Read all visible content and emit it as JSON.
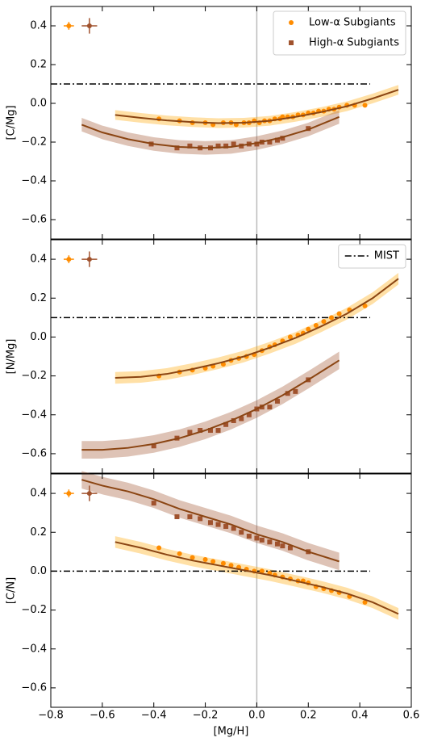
{
  "chart_data": [
    {
      "type": "scatter",
      "ylabel": "[C/Mg]",
      "ylim": [
        -0.7,
        0.5
      ],
      "yticks": [
        {
          "value": -0.6,
          "label": "−0.6"
        },
        {
          "value": -0.4,
          "label": "−0.4"
        },
        {
          "value": -0.2,
          "label": "−0.2"
        },
        {
          "value": 0,
          "label": "0.0"
        },
        0.2,
        0.4
      ],
      "vline": 0,
      "legend": "upper right",
      "series": [
        {
          "name": "Low-α Subgiants",
          "color": "#ff8c00",
          "marker": "circle",
          "x": [
            -0.38,
            -0.3,
            -0.25,
            -0.2,
            -0.17,
            -0.13,
            -0.1,
            -0.08,
            -0.05,
            -0.03,
            -0.01,
            0.01,
            0.03,
            0.05,
            0.07,
            0.09,
            0.1,
            0.12,
            0.14,
            0.16,
            0.18,
            0.2,
            0.22,
            0.24,
            0.26,
            0.28,
            0.3,
            0.32,
            0.35,
            0.38,
            0.42
          ],
          "values": [
            -0.08,
            -0.09,
            -0.1,
            -0.1,
            -0.11,
            -0.1,
            -0.1,
            -0.11,
            -0.1,
            -0.1,
            -0.09,
            -0.1,
            -0.09,
            -0.09,
            -0.08,
            -0.08,
            -0.07,
            -0.07,
            -0.07,
            -0.06,
            -0.06,
            -0.05,
            -0.05,
            -0.04,
            -0.04,
            -0.03,
            -0.03,
            -0.02,
            -0.01,
            -0.01,
            -0.01
          ]
        },
        {
          "name": "High-α Subgiants",
          "color": "#a0522d",
          "marker": "square",
          "x": [
            -0.41,
            -0.31,
            -0.26,
            -0.22,
            -0.18,
            -0.15,
            -0.12,
            -0.09,
            -0.06,
            -0.03,
            0,
            0.02,
            0.05,
            0.08,
            0.1,
            0.2
          ],
          "values": [
            -0.21,
            -0.23,
            -0.22,
            -0.23,
            -0.23,
            -0.22,
            -0.22,
            -0.21,
            -0.22,
            -0.21,
            -0.21,
            -0.2,
            -0.2,
            -0.19,
            -0.18,
            -0.13
          ]
        }
      ],
      "fits": [
        {
          "color": "#8b4513",
          "band_color": "#ffa500",
          "x": [
            -0.55,
            -0.45,
            -0.35,
            -0.25,
            -0.15,
            -0.05,
            0.05,
            0.15,
            0.25,
            0.35,
            0.45,
            0.55
          ],
          "values": [
            -0.06,
            -0.075,
            -0.088,
            -0.097,
            -0.102,
            -0.1,
            -0.09,
            -0.07,
            -0.045,
            -0.015,
            0.025,
            0.07
          ],
          "lower": [
            -0.085,
            -0.1,
            -0.113,
            -0.122,
            -0.127,
            -0.125,
            -0.115,
            -0.095,
            -0.07,
            -0.04,
            0,
            0.045
          ],
          "upper": [
            -0.035,
            -0.05,
            -0.063,
            -0.072,
            -0.077,
            -0.075,
            -0.065,
            -0.045,
            -0.02,
            0.01,
            0.05,
            0.095
          ]
        },
        {
          "color": "#8b4513",
          "band_color": "#a0522d",
          "x": [
            -0.68,
            -0.6,
            -0.5,
            -0.4,
            -0.3,
            -0.2,
            -0.1,
            0,
            0.1,
            0.2,
            0.32
          ],
          "values": [
            -0.11,
            -0.15,
            -0.185,
            -0.21,
            -0.225,
            -0.23,
            -0.225,
            -0.205,
            -0.175,
            -0.135,
            -0.07
          ],
          "lower": [
            -0.145,
            -0.185,
            -0.22,
            -0.245,
            -0.26,
            -0.265,
            -0.26,
            -0.24,
            -0.21,
            -0.17,
            -0.105
          ],
          "upper": [
            -0.075,
            -0.115,
            -0.15,
            -0.175,
            -0.19,
            -0.195,
            -0.19,
            -0.17,
            -0.14,
            -0.1,
            -0.035
          ]
        }
      ],
      "reference": {
        "color": "#000000",
        "x": [
          -0.8,
          0.44
        ],
        "values": [
          0.1,
          0.1
        ]
      },
      "errors": [
        {
          "color": "#ff8c00",
          "x": -0.73,
          "y": 0.4,
          "xerr": 0.02,
          "yerr": 0.02
        },
        {
          "color": "#a0522d",
          "x": -0.65,
          "y": 0.4,
          "xerr": 0.03,
          "yerr": 0.04
        }
      ]
    },
    {
      "type": "scatter",
      "ylabel": "[N/Mg]",
      "ylim": [
        -0.7,
        0.5
      ],
      "yticks": [
        {
          "value": -0.6,
          "label": "−0.6"
        },
        {
          "value": -0.4,
          "label": "−0.4"
        },
        {
          "value": -0.2,
          "label": "−0.2"
        },
        {
          "value": 0,
          "label": "0.0"
        },
        0.2,
        0.4
      ],
      "vline": 0,
      "legend": "upper right",
      "series": [
        {
          "color": "#ff8c00",
          "marker": "circle",
          "x": [
            -0.38,
            -0.3,
            -0.25,
            -0.2,
            -0.17,
            -0.13,
            -0.1,
            -0.07,
            -0.04,
            -0.01,
            0.02,
            0.05,
            0.07,
            0.1,
            0.13,
            0.16,
            0.18,
            0.2,
            0.23,
            0.26,
            0.29,
            0.32,
            0.36,
            0.42
          ],
          "values": [
            -0.2,
            -0.18,
            -0.17,
            -0.16,
            -0.15,
            -0.14,
            -0.12,
            -0.11,
            -0.1,
            -0.09,
            -0.07,
            -0.05,
            -0.04,
            -0.02,
            0,
            0.01,
            0.02,
            0.04,
            0.06,
            0.08,
            0.1,
            0.12,
            0.14,
            0.16
          ]
        },
        {
          "color": "#a0522d",
          "marker": "square",
          "x": [
            -0.4,
            -0.31,
            -0.26,
            -0.22,
            -0.18,
            -0.15,
            -0.12,
            -0.09,
            -0.06,
            -0.03,
            0,
            0.02,
            0.05,
            0.08,
            0.12,
            0.15,
            0.2
          ],
          "values": [
            -0.56,
            -0.52,
            -0.49,
            -0.48,
            -0.48,
            -0.48,
            -0.45,
            -0.43,
            -0.42,
            -0.4,
            -0.37,
            -0.36,
            -0.36,
            -0.33,
            -0.29,
            -0.28,
            -0.22
          ]
        }
      ],
      "fits": [
        {
          "color": "#8b4513",
          "band_color": "#ffa500",
          "x": [
            -0.55,
            -0.45,
            -0.35,
            -0.25,
            -0.15,
            -0.05,
            0.05,
            0.15,
            0.25,
            0.35,
            0.45,
            0.55
          ],
          "values": [
            -0.21,
            -0.205,
            -0.19,
            -0.165,
            -0.135,
            -0.1,
            -0.055,
            -0.005,
            0.055,
            0.12,
            0.2,
            0.3
          ],
          "lower": [
            -0.24,
            -0.235,
            -0.22,
            -0.195,
            -0.165,
            -0.13,
            -0.085,
            -0.035,
            0.025,
            0.09,
            0.17,
            0.27
          ],
          "upper": [
            -0.18,
            -0.175,
            -0.16,
            -0.135,
            -0.105,
            -0.07,
            -0.025,
            0.025,
            0.085,
            0.15,
            0.23,
            0.33
          ]
        },
        {
          "color": "#8b4513",
          "band_color": "#a0522d",
          "x": [
            -0.68,
            -0.6,
            -0.5,
            -0.4,
            -0.3,
            -0.2,
            -0.1,
            0,
            0.1,
            0.2,
            0.32
          ],
          "values": [
            -0.58,
            -0.58,
            -0.57,
            -0.55,
            -0.52,
            -0.48,
            -0.43,
            -0.37,
            -0.3,
            -0.22,
            -0.12
          ],
          "lower": [
            -0.625,
            -0.625,
            -0.615,
            -0.595,
            -0.565,
            -0.525,
            -0.475,
            -0.415,
            -0.345,
            -0.265,
            -0.165
          ],
          "upper": [
            -0.535,
            -0.535,
            -0.525,
            -0.505,
            -0.475,
            -0.435,
            -0.385,
            -0.325,
            -0.255,
            -0.175,
            -0.075
          ]
        }
      ],
      "reference": {
        "name": "MIST",
        "color": "#000000",
        "x": [
          -0.8,
          0.44
        ],
        "values": [
          0.1,
          0.1
        ]
      },
      "errors": [
        {
          "color": "#ff8c00",
          "x": -0.73,
          "y": 0.4,
          "xerr": 0.02,
          "yerr": 0.02
        },
        {
          "color": "#a0522d",
          "x": -0.65,
          "y": 0.4,
          "xerr": 0.03,
          "yerr": 0.04
        }
      ]
    },
    {
      "type": "scatter",
      "ylabel": "[C/N]",
      "xlabel": "[Mg/H]",
      "xlim": [
        -0.8,
        0.6
      ],
      "ylim": [
        -0.7,
        0.5
      ],
      "xticks": [
        {
          "value": -0.8,
          "label": "−0.8"
        },
        {
          "value": -0.6,
          "label": "−0.6"
        },
        {
          "value": -0.4,
          "label": "−0.4"
        },
        {
          "value": -0.2,
          "label": "−0.2"
        },
        {
          "value": 0,
          "label": "0.0"
        },
        0.2,
        0.4,
        0.6
      ],
      "yticks": [
        {
          "value": -0.6,
          "label": "−0.6"
        },
        {
          "value": -0.4,
          "label": "−0.4"
        },
        {
          "value": -0.2,
          "label": "−0.2"
        },
        {
          "value": 0,
          "label": "0.0"
        },
        0.2,
        0.4
      ],
      "vline": 0,
      "series": [
        {
          "color": "#ff8c00",
          "marker": "circle",
          "x": [
            -0.38,
            -0.3,
            -0.25,
            -0.2,
            -0.17,
            -0.13,
            -0.1,
            -0.07,
            -0.04,
            -0.01,
            0.02,
            0.05,
            0.07,
            0.1,
            0.13,
            0.16,
            0.18,
            0.2,
            0.23,
            0.26,
            0.29,
            0.32,
            0.36,
            0.42
          ],
          "values": [
            0.12,
            0.09,
            0.07,
            0.06,
            0.05,
            0.04,
            0.03,
            0.02,
            0.01,
            0,
            0,
            -0.01,
            -0.02,
            -0.03,
            -0.04,
            -0.05,
            -0.05,
            -0.06,
            -0.08,
            -0.09,
            -0.1,
            -0.11,
            -0.13,
            -0.16
          ]
        },
        {
          "color": "#a0522d",
          "marker": "square",
          "x": [
            -0.4,
            -0.31,
            -0.26,
            -0.22,
            -0.18,
            -0.15,
            -0.12,
            -0.09,
            -0.06,
            -0.03,
            0,
            0.02,
            0.05,
            0.08,
            0.1,
            0.13,
            0.2
          ],
          "values": [
            0.35,
            0.28,
            0.28,
            0.27,
            0.25,
            0.24,
            0.23,
            0.22,
            0.2,
            0.18,
            0.17,
            0.16,
            0.15,
            0.14,
            0.13,
            0.12,
            0.1
          ]
        }
      ],
      "fits": [
        {
          "color": "#8b4513",
          "band_color": "#ffa500",
          "x": [
            -0.55,
            -0.45,
            -0.35,
            -0.25,
            -0.15,
            -0.05,
            0.05,
            0.15,
            0.25,
            0.35,
            0.45,
            0.55
          ],
          "values": [
            0.15,
            0.12,
            0.085,
            0.055,
            0.03,
            0.005,
            -0.02,
            -0.05,
            -0.08,
            -0.115,
            -0.16,
            -0.22
          ],
          "lower": [
            0.12,
            0.09,
            0.055,
            0.025,
            0,
            -0.025,
            -0.05,
            -0.08,
            -0.11,
            -0.145,
            -0.19,
            -0.25
          ],
          "upper": [
            0.18,
            0.15,
            0.115,
            0.085,
            0.06,
            0.035,
            0.01,
            -0.02,
            -0.05,
            -0.085,
            -0.13,
            -0.19
          ]
        },
        {
          "color": "#8b4513",
          "band_color": "#a0522d",
          "x": [
            -0.68,
            -0.6,
            -0.5,
            -0.4,
            -0.3,
            -0.2,
            -0.1,
            0,
            0.1,
            0.2,
            0.32
          ],
          "values": [
            0.47,
            0.44,
            0.41,
            0.37,
            0.32,
            0.28,
            0.24,
            0.19,
            0.15,
            0.1,
            0.05
          ],
          "lower": [
            0.425,
            0.395,
            0.365,
            0.325,
            0.275,
            0.235,
            0.195,
            0.145,
            0.105,
            0.055,
            0.005
          ],
          "upper": [
            0.515,
            0.485,
            0.455,
            0.415,
            0.365,
            0.325,
            0.285,
            0.235,
            0.195,
            0.145,
            0.095
          ]
        }
      ],
      "reference": {
        "color": "#000000",
        "x": [
          -0.8,
          0.44
        ],
        "values": [
          0,
          0
        ]
      },
      "errors": [
        {
          "color": "#ff8c00",
          "x": -0.73,
          "y": 0.4,
          "xerr": 0.02,
          "yerr": 0.02
        },
        {
          "color": "#a0522d",
          "x": -0.65,
          "y": 0.4,
          "xerr": 0.03,
          "yerr": 0.04
        }
      ]
    }
  ]
}
